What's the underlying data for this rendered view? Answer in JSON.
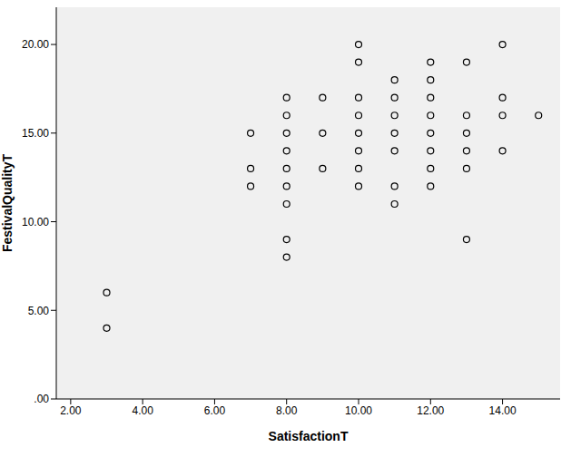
{
  "chart_data": {
    "type": "scatter",
    "x_label": "SatisfactionT",
    "y_label": "FestivalQualityT",
    "x": [
      3,
      3,
      7,
      7,
      7,
      8,
      8,
      8,
      8,
      8,
      8,
      8,
      8,
      8,
      9,
      9,
      9,
      10,
      10,
      10,
      10,
      10,
      10,
      10,
      10,
      11,
      11,
      11,
      11,
      11,
      11,
      11,
      12,
      12,
      12,
      12,
      12,
      12,
      12,
      12,
      13,
      13,
      13,
      13,
      13,
      13,
      14,
      14,
      14,
      14,
      15
    ],
    "values": [
      6,
      4,
      15,
      13,
      12,
      17,
      16,
      15,
      14,
      13,
      12,
      11,
      9,
      8,
      17,
      15,
      13,
      20,
      19,
      17,
      16,
      15,
      14,
      13,
      12,
      18,
      17,
      16,
      15,
      14,
      12,
      11,
      19,
      18,
      17,
      16,
      15,
      14,
      13,
      12,
      19,
      16,
      15,
      14,
      13,
      9,
      20,
      17,
      16,
      14,
      16
    ],
    "color": "#000000",
    "marker": "hollow_circle",
    "xlim": [
      1.6,
      15.6
    ],
    "ylim": [
      0,
      22.1
    ],
    "xticks": [
      {
        "value": 2,
        "label": "2.00"
      },
      {
        "value": 4,
        "label": "4.00"
      },
      {
        "value": 6,
        "label": "6.00"
      },
      {
        "value": 8,
        "label": "8.00"
      },
      {
        "value": 10,
        "label": "10.00"
      },
      {
        "value": 12,
        "label": "12.00"
      },
      {
        "value": 14,
        "label": "14.00"
      }
    ],
    "yticks": [
      {
        "value": 0,
        "label": ".00"
      },
      {
        "value": 5,
        "label": "5.00"
      },
      {
        "value": 10,
        "label": "10.00"
      },
      {
        "value": 15,
        "label": "15.00"
      },
      {
        "value": 20,
        "label": "20.00"
      }
    ],
    "grid": false
  }
}
